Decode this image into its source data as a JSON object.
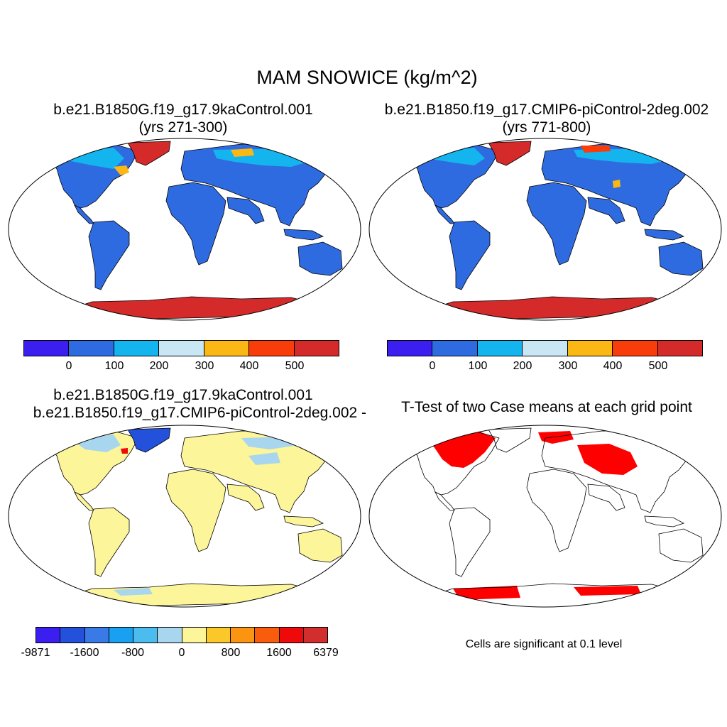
{
  "figure": {
    "title": "MAM SNOWICE (kg/m^2)",
    "footnote": "Cells are significant at 0.1 level"
  },
  "panels": {
    "case1": {
      "title_line1": "b.e21.B1850G.f19_g17.9kaControl.001",
      "title_line2": "(yrs 271-300)",
      "colorbar_colors": [
        "#3b1ef0",
        "#2f6be0",
        "#14b4ef",
        "#c9e6f5",
        "#fbb714",
        "#f83c0a",
        "#d42a2a"
      ],
      "colorbar_labels": [
        "0",
        "100",
        "200",
        "300",
        "400",
        "500"
      ]
    },
    "case2": {
      "title_line1": "b.e21.B1850.f19_g17.CMIP6-piControl-2deg.002",
      "title_line2": "(yrs 771-800)",
      "colorbar_colors": [
        "#3b1ef0",
        "#2f6be0",
        "#14b4ef",
        "#c9e6f5",
        "#fbb714",
        "#f83c0a",
        "#d42a2a"
      ],
      "colorbar_labels": [
        "0",
        "100",
        "200",
        "300",
        "400",
        "500"
      ]
    },
    "diff": {
      "title_line1": "b.e21.B1850G.f19_g17.9kaControl.001",
      "title_line2": "- b.e21.B1850.f19_g17.CMIP6-piControl-2deg.002",
      "colorbar_colors": [
        "#3b1ef0",
        "#2451dc",
        "#3a7ae6",
        "#1aa0f0",
        "#4cbcee",
        "#a8d6ee",
        "#fdf59a",
        "#fbc82a",
        "#fb9410",
        "#f85c0c",
        "#ee0a0a",
        "#d22e2e"
      ],
      "colorbar_labels": [
        "-9871",
        "-1600",
        "-800",
        "0",
        "800",
        "1600",
        "6379"
      ]
    },
    "ttest": {
      "title": "T-Test of two Case means at each grid point",
      "significant_color": "#ff0000"
    }
  },
  "colors": {
    "land_case": "#2f6be0",
    "antarctica": "#d42a2a",
    "greenland": "#d42a2a",
    "land_diff": "#fdf59a",
    "diff_light_blue": "#a8d6ee",
    "coastline": "#000000"
  }
}
